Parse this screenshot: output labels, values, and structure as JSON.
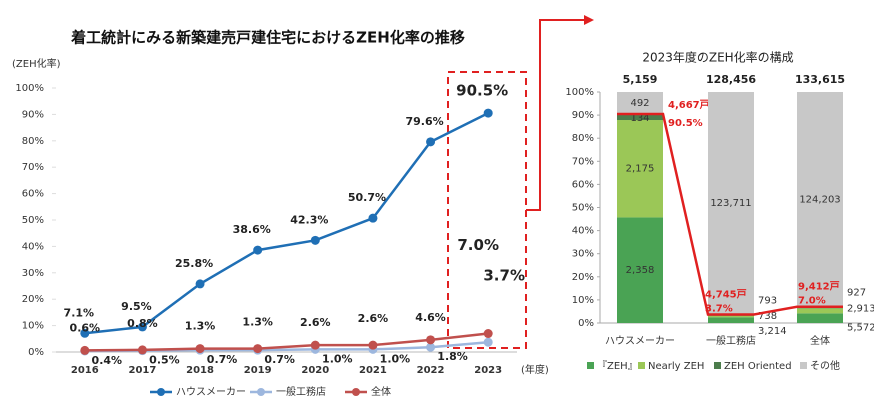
{
  "chart_data": [
    {
      "type": "line",
      "title": "着工統計にみる新築建売戸建住宅におけるZEH化率の推移",
      "y_label": "(ZEH化率)",
      "x_label": "(年度)",
      "categories": [
        "2016",
        "2017",
        "2018",
        "2019",
        "2020",
        "2021",
        "2022",
        "2023"
      ],
      "series": [
        {
          "name": "ハウスメーカー",
          "color": "#1f6fb5",
          "values": [
            7.1,
            9.5,
            25.8,
            38.6,
            42.3,
            50.7,
            79.6,
            90.5
          ],
          "value_labels": [
            "7.1%",
            "9.5%",
            "25.8%",
            "38.6%",
            "42.3%",
            "50.7%",
            "79.6%",
            "90.5%"
          ]
        },
        {
          "name": "一般工務店",
          "color": "#9db7de",
          "values": [
            0.4,
            0.5,
            0.7,
            0.7,
            1.0,
            1.0,
            1.8,
            3.7
          ],
          "value_labels": [
            "0.4%",
            "0.5%",
            "0.7%",
            "0.7%",
            "1.0%",
            "1.0%",
            "1.8%",
            "3.7%"
          ]
        },
        {
          "name": "全体",
          "color": "#c0504d",
          "values": [
            0.6,
            0.8,
            1.3,
            1.3,
            2.6,
            2.6,
            4.6,
            7.0
          ],
          "value_labels": [
            "0.6%",
            "0.8%",
            "1.3%",
            "1.3%",
            "2.6%",
            "2.6%",
            "4.6%",
            "7.0%"
          ]
        }
      ],
      "ylim": [
        0,
        100
      ],
      "yticks": [
        {
          "value": 0,
          "label": "0%"
        },
        {
          "value": 10,
          "label": "10%"
        },
        {
          "value": 20,
          "label": "20%"
        },
        {
          "value": 30,
          "label": "30%"
        },
        {
          "value": 40,
          "label": "40%"
        },
        {
          "value": 50,
          "label": "50%"
        },
        {
          "value": 60,
          "label": "60%"
        },
        {
          "value": 70,
          "label": "70%"
        },
        {
          "value": 80,
          "label": "80%"
        },
        {
          "value": 90,
          "label": "90%"
        },
        {
          "value": 100,
          "label": "100%"
        }
      ],
      "legend": "bottom"
    },
    {
      "type": "stacked_bar_100",
      "title": "2023年度のZEH化率の構成",
      "categories": [
        "ハウスメーカー",
        "一般工務店",
        "全体"
      ],
      "totals": [
        "5,159",
        "128,456",
        "133,615"
      ],
      "series": [
        {
          "name": "『ZEH』",
          "color": "#4aa354",
          "values": [
            2358,
            3214,
            5572
          ],
          "value_labels": [
            "2,358",
            "3,214",
            "5,572"
          ]
        },
        {
          "name": "Nearly ZEH",
          "color": "#9bc757",
          "values": [
            2175,
            738,
            2913
          ],
          "value_labels": [
            "2,175",
            "738",
            "2,913"
          ]
        },
        {
          "name": "ZEH Oriented",
          "color": "#4c7d4c",
          "values": [
            134,
            793,
            927
          ],
          "value_labels": [
            "134",
            "793",
            "927"
          ]
        },
        {
          "name": "その他",
          "color": "#c8c8c8",
          "values": [
            492,
            123711,
            124203
          ],
          "value_labels": [
            "492",
            "123,711",
            "124,203"
          ]
        }
      ],
      "annotations": [
        {
          "count": "4,667戸",
          "rate": "90.5%"
        },
        {
          "count": "4,745戸",
          "rate": "3.7%"
        },
        {
          "count": "9,412戸",
          "rate": "7.0%"
        }
      ],
      "ylim": [
        0,
        100
      ],
      "yticks": [
        {
          "value": 0,
          "label": "0%"
        },
        {
          "value": 10,
          "label": "10%"
        },
        {
          "value": 20,
          "label": "20%"
        },
        {
          "value": 30,
          "label": "30%"
        },
        {
          "value": 40,
          "label": "40%"
        },
        {
          "value": 50,
          "label": "50%"
        },
        {
          "value": 60,
          "label": "60%"
        },
        {
          "value": 70,
          "label": "70%"
        },
        {
          "value": 80,
          "label": "80%"
        },
        {
          "value": 90,
          "label": "90%"
        },
        {
          "value": 100,
          "label": "100%"
        }
      ],
      "legend": "bottom"
    }
  ]
}
